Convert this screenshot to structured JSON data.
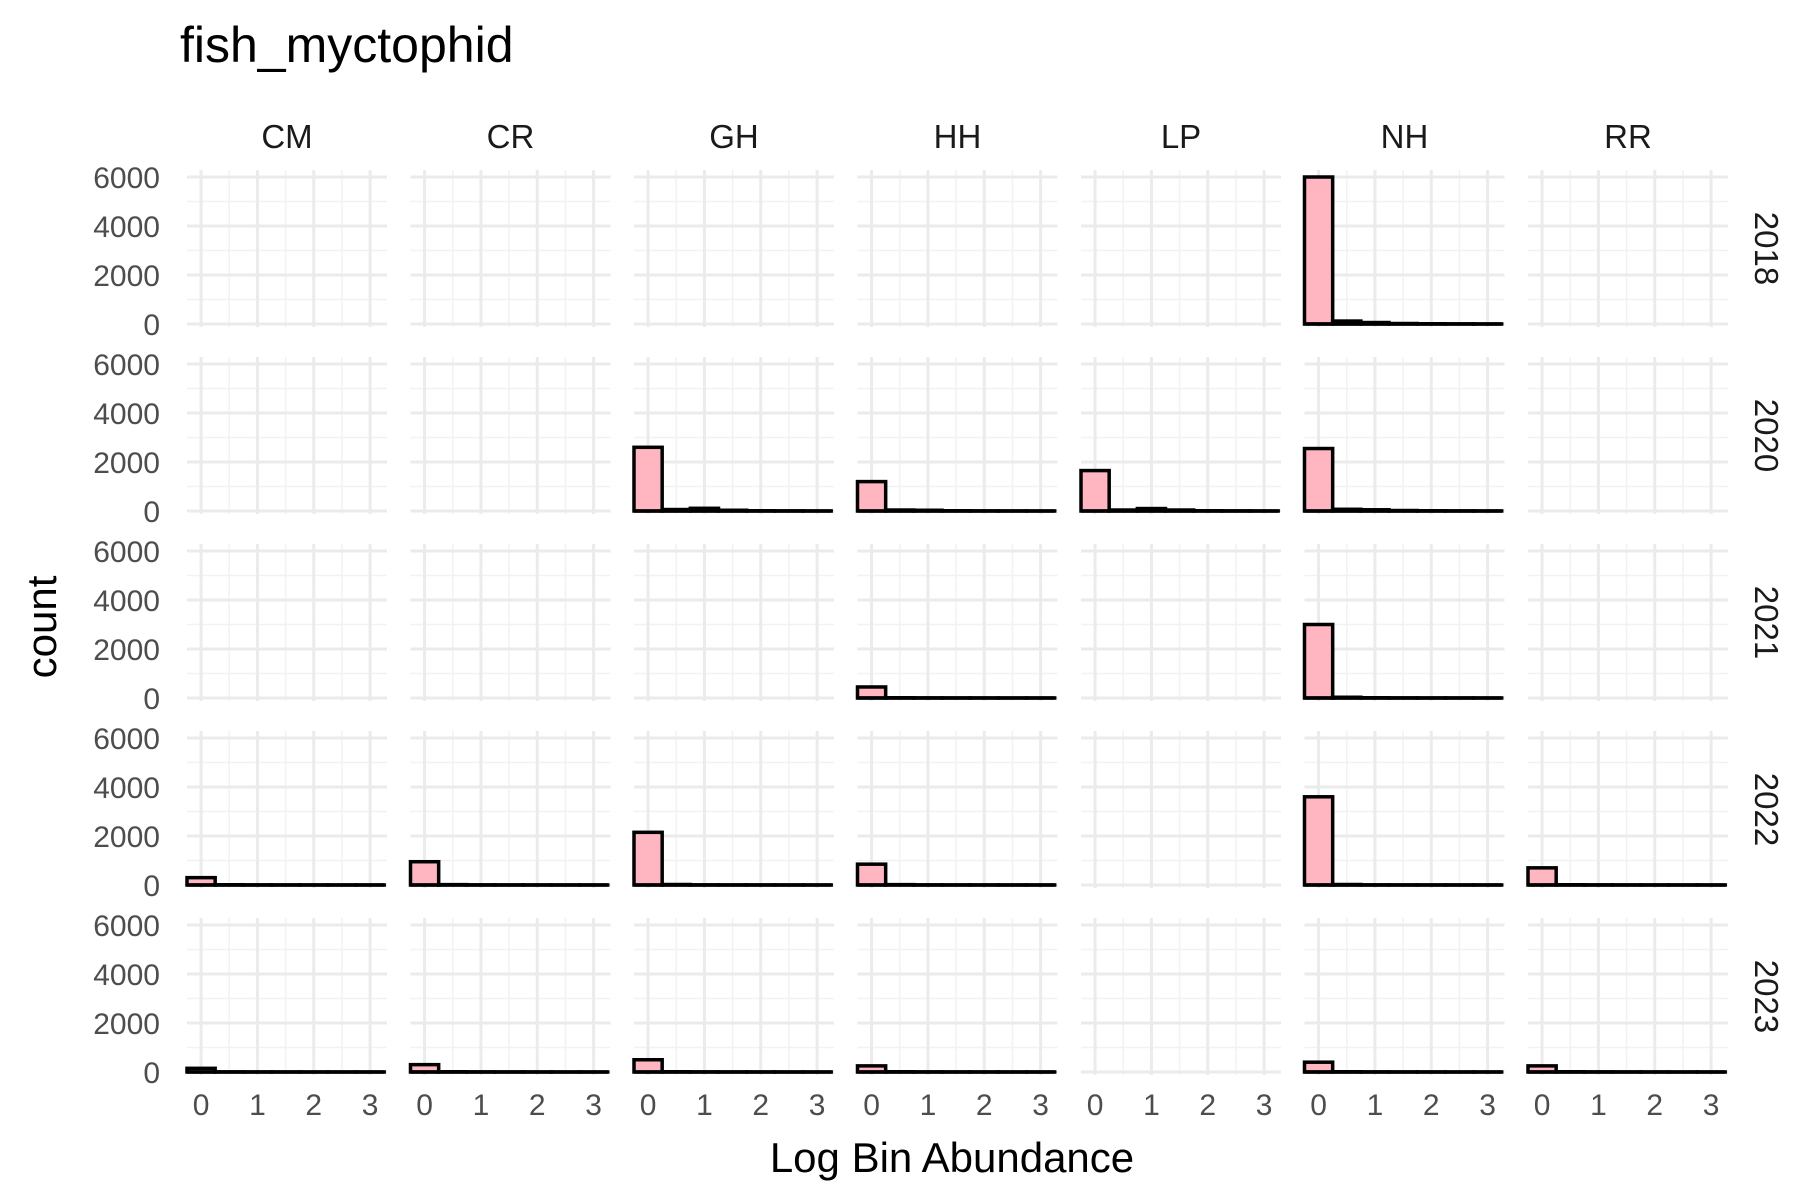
{
  "chart_data": {
    "type": "bar",
    "title": "fish_myctophid",
    "xlabel": "Log Bin Abundance",
    "ylabel": "count",
    "facet_cols": [
      "CM",
      "CR",
      "GH",
      "HH",
      "LP",
      "NH",
      "RR"
    ],
    "facet_rows": [
      "2018",
      "2020",
      "2021",
      "2022",
      "2023"
    ],
    "xlim": [
      -0.25,
      3.3
    ],
    "ylim": [
      0,
      6000
    ],
    "x_ticks": [
      0,
      1,
      2,
      3
    ],
    "y_ticks": [
      0,
      2000,
      4000,
      6000
    ],
    "bin_width": 0.5,
    "bin_starts": [
      -0.25,
      0.25,
      0.75,
      1.25,
      1.75,
      2.25,
      2.75
    ],
    "grid": true,
    "bar_fill": "#ffb6c1",
    "bar_outline": "#000000",
    "panels": [
      {
        "col": "NH",
        "row": "2018",
        "counts": [
          6000,
          120,
          60,
          20,
          10,
          5,
          2
        ]
      },
      {
        "col": "GH",
        "row": "2020",
        "counts": [
          2600,
          60,
          110,
          30,
          10,
          5,
          2
        ]
      },
      {
        "col": "HH",
        "row": "2020",
        "counts": [
          1200,
          40,
          30,
          10,
          5,
          2,
          1
        ]
      },
      {
        "col": "LP",
        "row": "2020",
        "counts": [
          1650,
          40,
          100,
          40,
          10,
          5,
          2
        ]
      },
      {
        "col": "NH",
        "row": "2020",
        "counts": [
          2550,
          70,
          50,
          20,
          10,
          5,
          2
        ]
      },
      {
        "col": "HH",
        "row": "2021",
        "counts": [
          450,
          10,
          5,
          3,
          2,
          1,
          1
        ]
      },
      {
        "col": "NH",
        "row": "2021",
        "counts": [
          3000,
          30,
          10,
          5,
          3,
          2,
          1
        ]
      },
      {
        "col": "CM",
        "row": "2022",
        "counts": [
          300,
          10,
          5,
          3,
          2,
          1,
          1
        ]
      },
      {
        "col": "CR",
        "row": "2022",
        "counts": [
          950,
          15,
          5,
          3,
          2,
          1,
          1
        ]
      },
      {
        "col": "GH",
        "row": "2022",
        "counts": [
          2150,
          20,
          5,
          3,
          2,
          1,
          1
        ]
      },
      {
        "col": "HH",
        "row": "2022",
        "counts": [
          850,
          15,
          5,
          3,
          2,
          1,
          1
        ]
      },
      {
        "col": "NH",
        "row": "2022",
        "counts": [
          3600,
          20,
          5,
          3,
          2,
          1,
          1
        ]
      },
      {
        "col": "RR",
        "row": "2022",
        "counts": [
          700,
          10,
          5,
          3,
          2,
          1,
          1
        ]
      },
      {
        "col": "CM",
        "row": "2023",
        "counts": [
          150,
          5,
          3,
          2,
          1,
          1,
          1
        ]
      },
      {
        "col": "CR",
        "row": "2023",
        "counts": [
          300,
          10,
          5,
          3,
          2,
          1,
          1
        ]
      },
      {
        "col": "GH",
        "row": "2023",
        "counts": [
          500,
          10,
          5,
          3,
          2,
          1,
          1
        ]
      },
      {
        "col": "HH",
        "row": "2023",
        "counts": [
          250,
          10,
          5,
          3,
          2,
          1,
          1
        ]
      },
      {
        "col": "NH",
        "row": "2023",
        "counts": [
          400,
          10,
          5,
          3,
          2,
          1,
          1
        ]
      },
      {
        "col": "RR",
        "row": "2023",
        "counts": [
          250,
          10,
          5,
          3,
          2,
          1,
          1
        ]
      }
    ]
  }
}
